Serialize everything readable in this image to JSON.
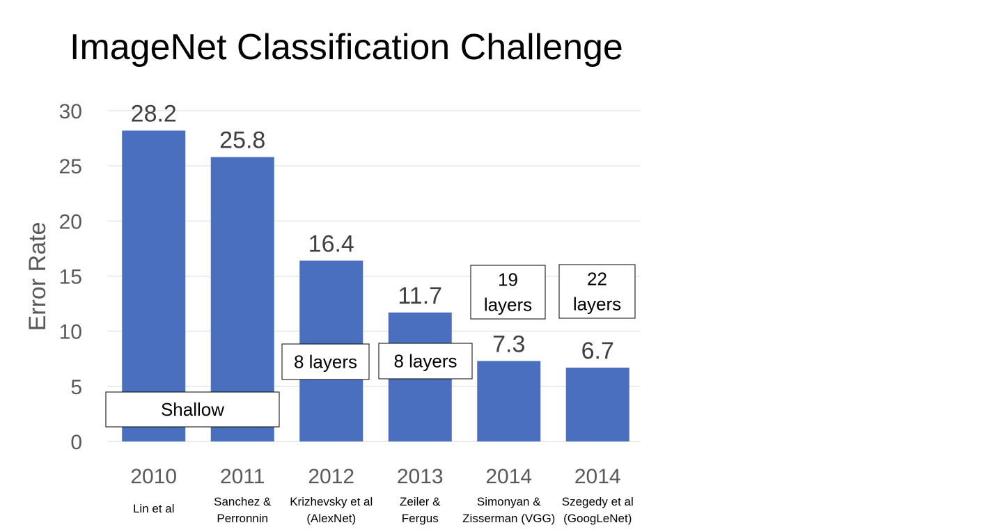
{
  "title": "ImageNet Classification Challenge",
  "colors": {
    "bar": "#4A6FBF",
    "grid": "#D9D9D9",
    "tick_text": "#595959",
    "data_label": "#404040"
  },
  "chart_data": {
    "type": "bar",
    "title": "ImageNet Classification Challenge",
    "ylabel": "Error Rate",
    "xlabel": "",
    "ylim": [
      0,
      30
    ],
    "yticks": [
      0,
      5,
      10,
      15,
      20,
      25,
      30
    ],
    "grid": true,
    "categories": [
      "2010",
      "2011",
      "2012",
      "2013",
      "2014",
      "2014"
    ],
    "sublabels": [
      [
        "Lin et al"
      ],
      [
        "Sanchez &",
        "Perronnin"
      ],
      [
        "Krizhevsky et al",
        "(AlexNet)"
      ],
      [
        "Zeiler &",
        "Fergus"
      ],
      [
        "Simonyan &",
        "Zisserman (VGG)"
      ],
      [
        "Szegedy et al",
        "(GoogLeNet)"
      ]
    ],
    "values": [
      28.2,
      25.8,
      16.4,
      11.7,
      7.3,
      6.7
    ],
    "data_labels": [
      "28.2",
      "25.8",
      "16.4",
      "11.7",
      "7.3",
      "6.7"
    ],
    "annotations": [
      {
        "bars": [
          0,
          1
        ],
        "lines": [
          "Shallow"
        ]
      },
      {
        "bars": [
          2
        ],
        "lines": [
          "8 layers"
        ]
      },
      {
        "bars": [
          3
        ],
        "lines": [
          "8 layers"
        ]
      },
      {
        "bars": [
          4
        ],
        "lines": [
          "19",
          "layers"
        ]
      },
      {
        "bars": [
          5
        ],
        "lines": [
          "22",
          "layers"
        ]
      }
    ]
  }
}
